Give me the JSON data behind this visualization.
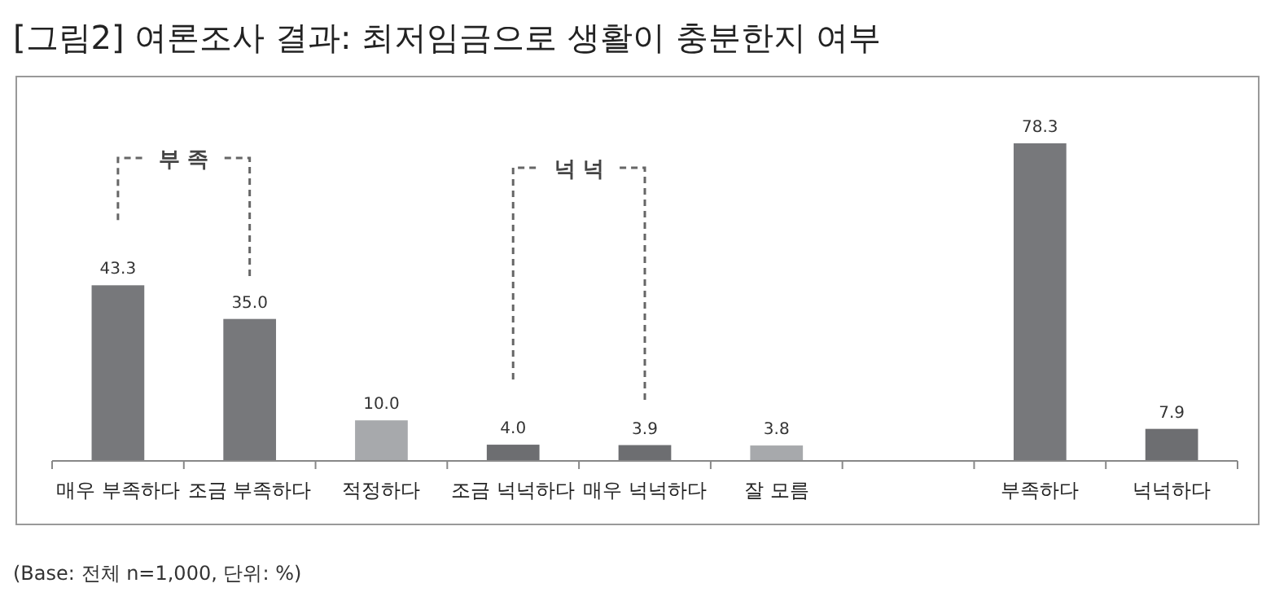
{
  "chart_data": {
    "type": "bar",
    "title": "[그림2] 여론조사 결과: 최저임금으로 생활이 충분한지 여부",
    "categories": [
      "매우 부족하다",
      "조금 부족하다",
      "적정하다",
      "조금 넉넉하다",
      "매우 넉넉하다",
      "잘 모름",
      null,
      "부족하다",
      "넉넉하다"
    ],
    "values": [
      43.3,
      35.0,
      10.0,
      4.0,
      3.9,
      3.8,
      null,
      78.3,
      7.9
    ],
    "colors": [
      "#77787b",
      "#77787b",
      "#a7a9ac",
      "#6d6e71",
      "#6d6e71",
      "#a7a9ac",
      null,
      "#77787b",
      "#6d6e71"
    ],
    "value_labels": [
      "43.3",
      "35.0",
      "10.0",
      "4.0",
      "3.9",
      "3.8",
      null,
      "78.3",
      "7.9"
    ],
    "annotations": [
      "부 족",
      "넉 넉",
      "(Base: 전체 n=1,000, 단위: %)"
    ]
  }
}
